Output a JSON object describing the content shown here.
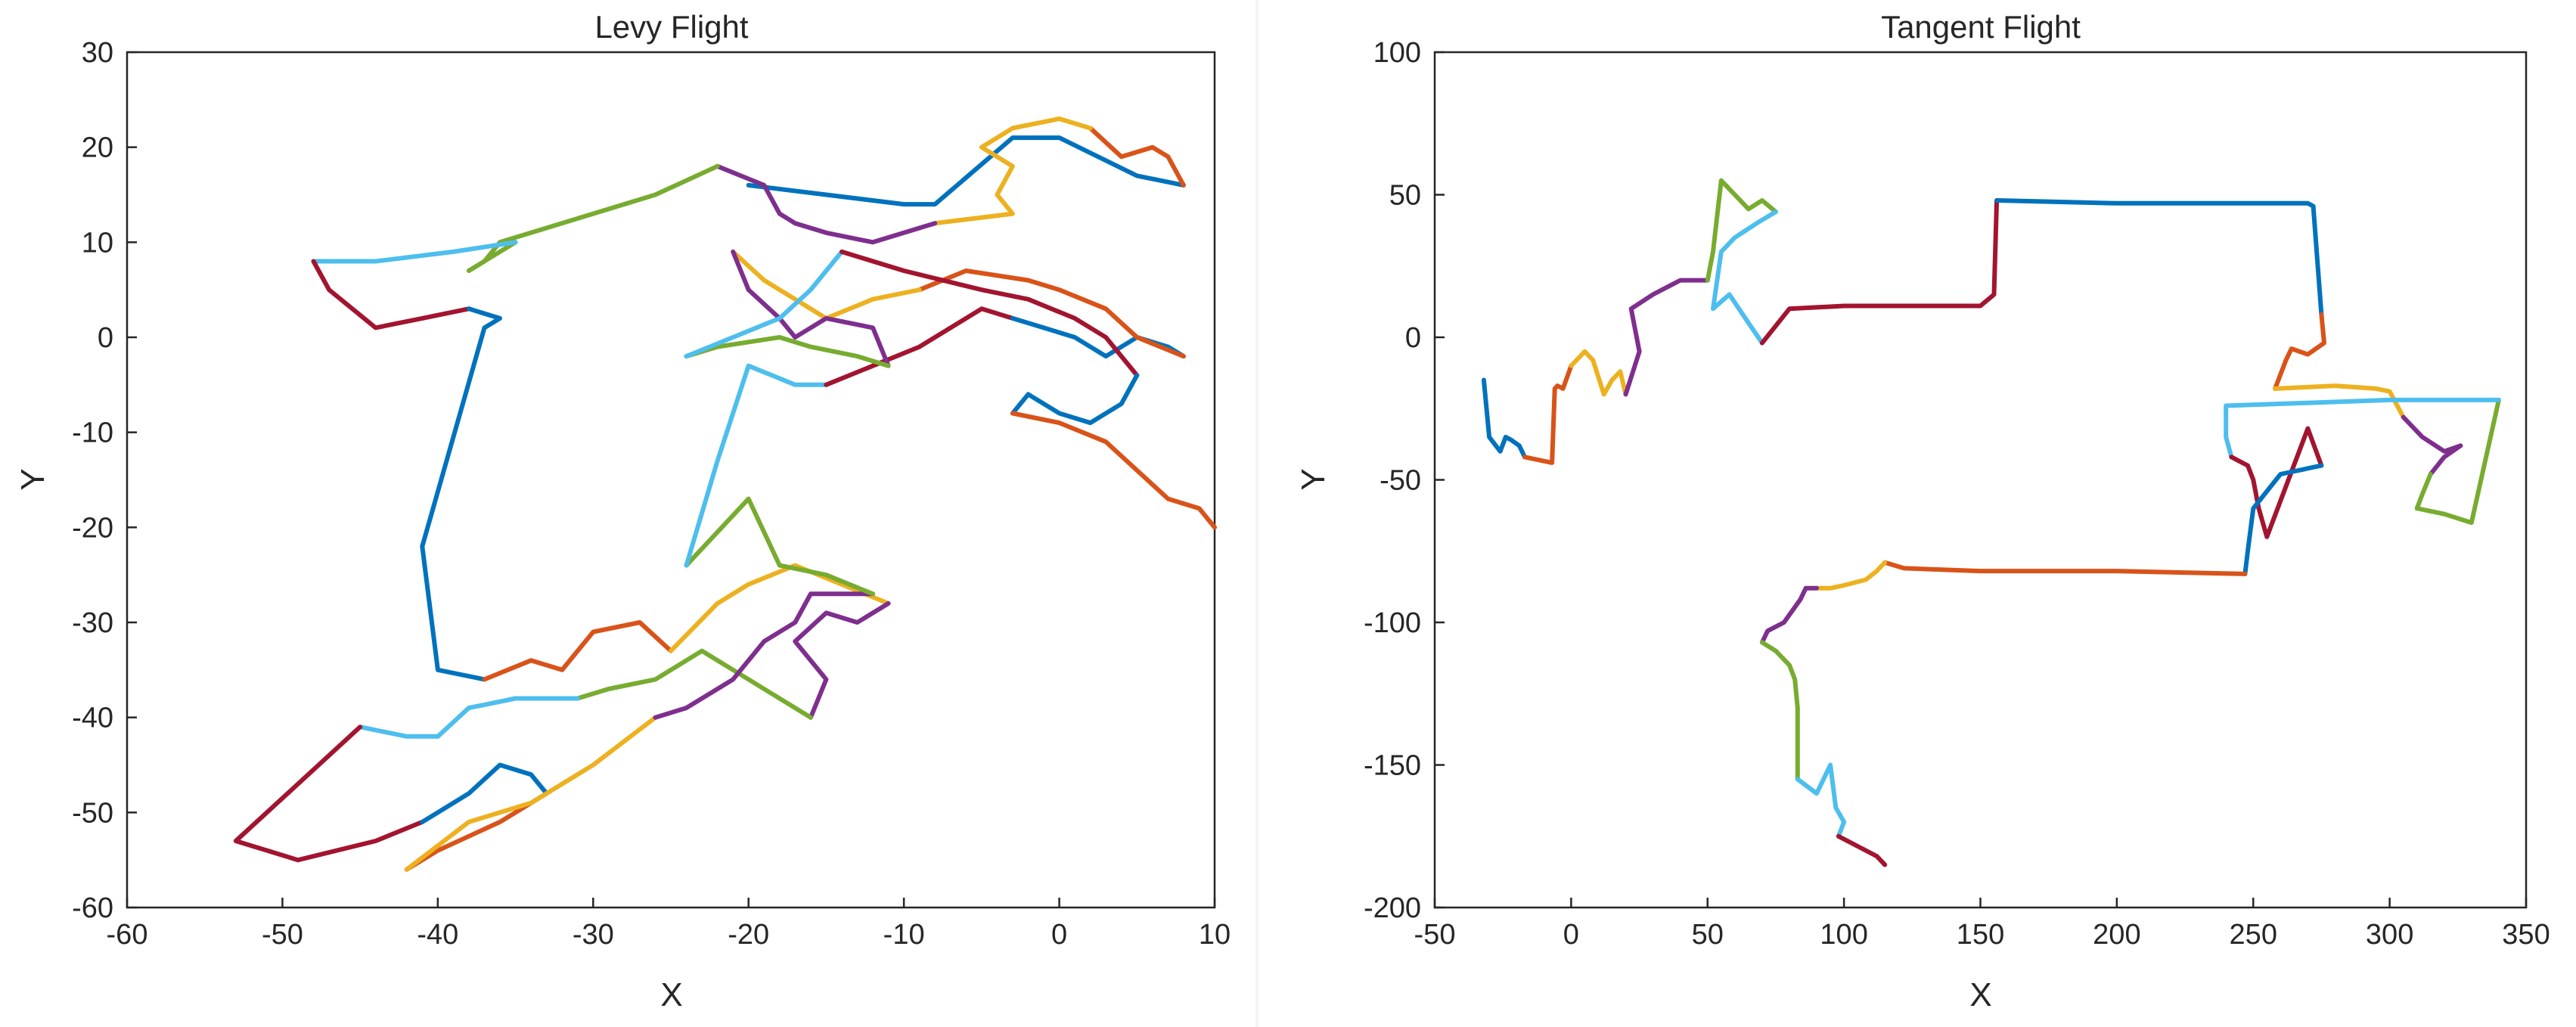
{
  "chart_data": [
    {
      "type": "line",
      "title": "Levy Flight",
      "xlabel": "X",
      "ylabel": "Y",
      "xlim": [
        -60,
        10
      ],
      "ylim": [
        -60,
        30
      ],
      "xticks": [
        -60,
        -50,
        -40,
        -30,
        -20,
        -10,
        0,
        10
      ],
      "yticks": [
        -60,
        -50,
        -40,
        -30,
        -20,
        -10,
        0,
        10,
        20,
        30
      ],
      "xtick_labels": [
        "-60",
        "-50",
        "-40",
        "-30",
        "-20",
        "-10",
        "0",
        "10"
      ],
      "ytick_labels": [
        "-60",
        "-50",
        "-40",
        "-30",
        "-20",
        "-10",
        "0",
        "10",
        "20",
        "30"
      ],
      "grid": false,
      "legend": "none",
      "color_order": [
        "#0072BD",
        "#D95319",
        "#EDB120",
        "#7E2F8E",
        "#77AC30",
        "#4DBEEE",
        "#A2142F"
      ],
      "series": [
        {
          "x": [
            -20,
            -15,
            -10,
            -8,
            -3,
            0,
            5,
            8
          ],
          "y": [
            16,
            15,
            14,
            14,
            21,
            21,
            17,
            16
          ]
        },
        {
          "x": [
            8,
            7,
            6,
            4,
            2
          ],
          "y": [
            16,
            19,
            20,
            19,
            22
          ]
        },
        {
          "x": [
            2,
            0,
            -3,
            -5,
            -3,
            -4,
            -3,
            -8
          ],
          "y": [
            22,
            23,
            22,
            20,
            18,
            15,
            13,
            12
          ]
        },
        {
          "x": [
            -8,
            -12,
            -15,
            -17,
            -18,
            -19,
            -22
          ],
          "y": [
            12,
            10,
            11,
            12,
            13,
            16,
            18
          ]
        },
        {
          "x": [
            -22,
            -26,
            -30,
            -36,
            -37,
            -38,
            -35
          ],
          "y": [
            18,
            15,
            13,
            10,
            8,
            7,
            10
          ]
        },
        {
          "x": [
            -35,
            -39,
            -44,
            -48
          ],
          "y": [
            10,
            9,
            8,
            8
          ]
        },
        {
          "x": [
            -48,
            -47,
            -44,
            -41,
            -38
          ],
          "y": [
            8,
            5,
            1,
            2,
            3
          ]
        },
        {
          "x": [
            -38,
            -36,
            -37,
            -41,
            -40,
            -37
          ],
          "y": [
            3,
            2,
            1,
            -22,
            -35,
            -36
          ]
        },
        {
          "x": [
            -37,
            -34,
            -32,
            -30,
            -27,
            -25
          ],
          "y": [
            -36,
            -34,
            -35,
            -31,
            -30,
            -33
          ]
        },
        {
          "x": [
            -25,
            -22,
            -20,
            -17,
            -14,
            -11
          ],
          "y": [
            -33,
            -28,
            -26,
            -24,
            -26,
            -28
          ]
        },
        {
          "x": [
            -11,
            -13,
            -15,
            -17,
            -15,
            -16
          ],
          "y": [
            -28,
            -30,
            -29,
            -32,
            -36,
            -40
          ]
        },
        {
          "x": [
            -16,
            -19,
            -21,
            -23,
            -26,
            -29,
            -31
          ],
          "y": [
            -40,
            -37,
            -35,
            -33,
            -36,
            -37,
            -38
          ]
        },
        {
          "x": [
            -31,
            -35,
            -38,
            -40,
            -42,
            -45
          ],
          "y": [
            -38,
            -38,
            -39,
            -42,
            -42,
            -41
          ]
        },
        {
          "x": [
            -45,
            -49,
            -53,
            -49,
            -44,
            -41
          ],
          "y": [
            -41,
            -47,
            -53,
            -55,
            -53,
            -51
          ]
        },
        {
          "x": [
            -41,
            -38,
            -36,
            -34,
            -33
          ],
          "y": [
            -51,
            -48,
            -45,
            -46,
            -48
          ]
        },
        {
          "x": [
            -33,
            -36,
            -40,
            -42
          ],
          "y": [
            -48,
            -51,
            -54,
            -56
          ]
        },
        {
          "x": [
            -42,
            -38,
            -34,
            -30,
            -26
          ],
          "y": [
            -56,
            -51,
            -49,
            -45,
            -40
          ]
        },
        {
          "x": [
            -26,
            -24,
            -21,
            -19,
            -17,
            -16,
            -12
          ],
          "y": [
            -40,
            -39,
            -36,
            -32,
            -30,
            -27,
            -27
          ]
        },
        {
          "x": [
            -12,
            -15,
            -18,
            -20,
            -24
          ],
          "y": [
            -27,
            -25,
            -24,
            -17,
            -24
          ]
        },
        {
          "x": [
            -24,
            -22,
            -20,
            -17,
            -15
          ],
          "y": [
            -24,
            -13,
            -3,
            -5,
            -5
          ]
        },
        {
          "x": [
            -15,
            -12,
            -9,
            -7,
            -5,
            -3
          ],
          "y": [
            -5,
            -3,
            -1,
            1,
            3,
            2
          ]
        },
        {
          "x": [
            -3,
            -1,
            1,
            3,
            5,
            7,
            8
          ],
          "y": [
            2,
            1,
            0,
            -2,
            0,
            -1,
            -2
          ]
        },
        {
          "x": [
            8,
            5,
            3,
            0,
            -2,
            -6,
            -9
          ],
          "y": [
            -2,
            0,
            3,
            5,
            6,
            7,
            5
          ]
        },
        {
          "x": [
            -9,
            -12,
            -15,
            -17,
            -19,
            -21
          ],
          "y": [
            5,
            4,
            2,
            4,
            6,
            9
          ]
        },
        {
          "x": [
            -21,
            -20,
            -18,
            -17,
            -15,
            -12,
            -11
          ],
          "y": [
            9,
            5,
            2,
            0,
            2,
            1,
            -3
          ]
        },
        {
          "x": [
            -11,
            -13,
            -16,
            -18,
            -22,
            -24
          ],
          "y": [
            -3,
            -2,
            -1,
            0,
            -1,
            -2
          ]
        },
        {
          "x": [
            -24,
            -21,
            -18,
            -16,
            -14
          ],
          "y": [
            -2,
            0,
            2,
            5,
            9
          ]
        },
        {
          "x": [
            -14,
            -10,
            -5,
            -2,
            1,
            3,
            5
          ],
          "y": [
            9,
            7,
            5,
            4,
            2,
            0,
            -4
          ]
        },
        {
          "x": [
            5,
            4,
            2,
            0,
            -2,
            -3
          ],
          "y": [
            -4,
            -7,
            -9,
            -8,
            -6,
            -8
          ]
        },
        {
          "x": [
            -3,
            0,
            3,
            5,
            7,
            9,
            10
          ],
          "y": [
            -8,
            -9,
            -11,
            -14,
            -17,
            -18,
            -20
          ]
        }
      ]
    },
    {
      "type": "line",
      "title": "Tangent Flight",
      "xlabel": "X",
      "ylabel": "Y",
      "xlim": [
        -50,
        350
      ],
      "ylim": [
        -200,
        100
      ],
      "xticks": [
        -50,
        0,
        50,
        100,
        150,
        200,
        250,
        300,
        350
      ],
      "yticks": [
        -200,
        -150,
        -100,
        -50,
        0,
        50,
        100
      ],
      "xtick_labels": [
        "-50",
        "0",
        "50",
        "100",
        "150",
        "200",
        "250",
        "300",
        "350"
      ],
      "ytick_labels": [
        "-200",
        "-150",
        "-100",
        "-50",
        "0",
        "50",
        "100"
      ],
      "grid": false,
      "legend": "none",
      "color_order": [
        "#0072BD",
        "#D95319",
        "#EDB120",
        "#7E2F8E",
        "#77AC30",
        "#4DBEEE",
        "#A2142F"
      ],
      "series": [
        {
          "x": [
            -32,
            -31,
            -30,
            -26,
            -24,
            -22,
            -19,
            -17
          ],
          "y": [
            -15,
            -25,
            -35,
            -40,
            -35,
            -36,
            -38,
            -42
          ]
        },
        {
          "x": [
            -17,
            -7,
            -6,
            -5,
            -3,
            0
          ],
          "y": [
            -42,
            -44,
            -18,
            -17,
            -18,
            -10
          ]
        },
        {
          "x": [
            0,
            5,
            8,
            12,
            15,
            18,
            20
          ],
          "y": [
            -10,
            -5,
            -8,
            -20,
            -15,
            -12,
            -20
          ]
        },
        {
          "x": [
            20,
            25,
            22,
            30,
            40,
            50
          ],
          "y": [
            -20,
            -5,
            10,
            15,
            20,
            20
          ]
        },
        {
          "x": [
            50,
            52,
            55,
            60,
            65,
            70,
            75
          ],
          "y": [
            20,
            30,
            55,
            50,
            45,
            48,
            44
          ]
        },
        {
          "x": [
            75,
            68,
            60,
            55,
            52,
            58,
            65,
            70
          ],
          "y": [
            44,
            40,
            35,
            30,
            10,
            15,
            5,
            -2
          ]
        },
        {
          "x": [
            70,
            80,
            100,
            150,
            155,
            156
          ],
          "y": [
            -2,
            10,
            11,
            11,
            15,
            48
          ]
        },
        {
          "x": [
            156,
            200,
            230,
            270,
            272,
            275
          ],
          "y": [
            48,
            47,
            47,
            47,
            46,
            8
          ]
        },
        {
          "x": [
            275,
            276,
            270,
            264,
            262,
            258
          ],
          "y": [
            8,
            -2,
            -6,
            -4,
            -8,
            -18
          ]
        },
        {
          "x": [
            258,
            280,
            295,
            300,
            305
          ],
          "y": [
            -18,
            -17,
            -18,
            -19,
            -28
          ]
        },
        {
          "x": [
            305,
            312,
            320,
            326,
            320,
            315
          ],
          "y": [
            -28,
            -35,
            -40,
            -38,
            -42,
            -48
          ]
        },
        {
          "x": [
            315,
            312,
            310,
            320,
            330,
            340
          ],
          "y": [
            -48,
            -55,
            -60,
            -62,
            -65,
            -22
          ]
        },
        {
          "x": [
            340,
            300,
            270,
            240,
            240,
            242
          ],
          "y": [
            -22,
            -22,
            -23,
            -24,
            -35,
            -42
          ]
        },
        {
          "x": [
            242,
            248,
            250,
            252,
            255,
            270,
            275
          ],
          "y": [
            -42,
            -45,
            -50,
            -60,
            -70,
            -32,
            -45
          ]
        },
        {
          "x": [
            275,
            260,
            250,
            248,
            247
          ],
          "y": [
            -45,
            -48,
            -60,
            -75,
            -83
          ]
        },
        {
          "x": [
            247,
            200,
            150,
            122,
            115
          ],
          "y": [
            -83,
            -82,
            -82,
            -81,
            -79
          ]
        },
        {
          "x": [
            115,
            112,
            108,
            100,
            95,
            90
          ],
          "y": [
            -79,
            -82,
            -85,
            -87,
            -88,
            -88
          ]
        },
        {
          "x": [
            90,
            86,
            84,
            78,
            72,
            70
          ],
          "y": [
            -88,
            -88,
            -92,
            -100,
            -103,
            -107
          ]
        },
        {
          "x": [
            70,
            75,
            80,
            82,
            83,
            83
          ],
          "y": [
            -107,
            -110,
            -115,
            -120,
            -130,
            -155
          ]
        },
        {
          "x": [
            83,
            90,
            95,
            97,
            100,
            98
          ],
          "y": [
            -155,
            -160,
            -150,
            -165,
            -170,
            -175
          ]
        },
        {
          "x": [
            98,
            104,
            108,
            112,
            115
          ],
          "y": [
            -175,
            -178,
            -180,
            -182,
            -185
          ]
        }
      ]
    }
  ]
}
